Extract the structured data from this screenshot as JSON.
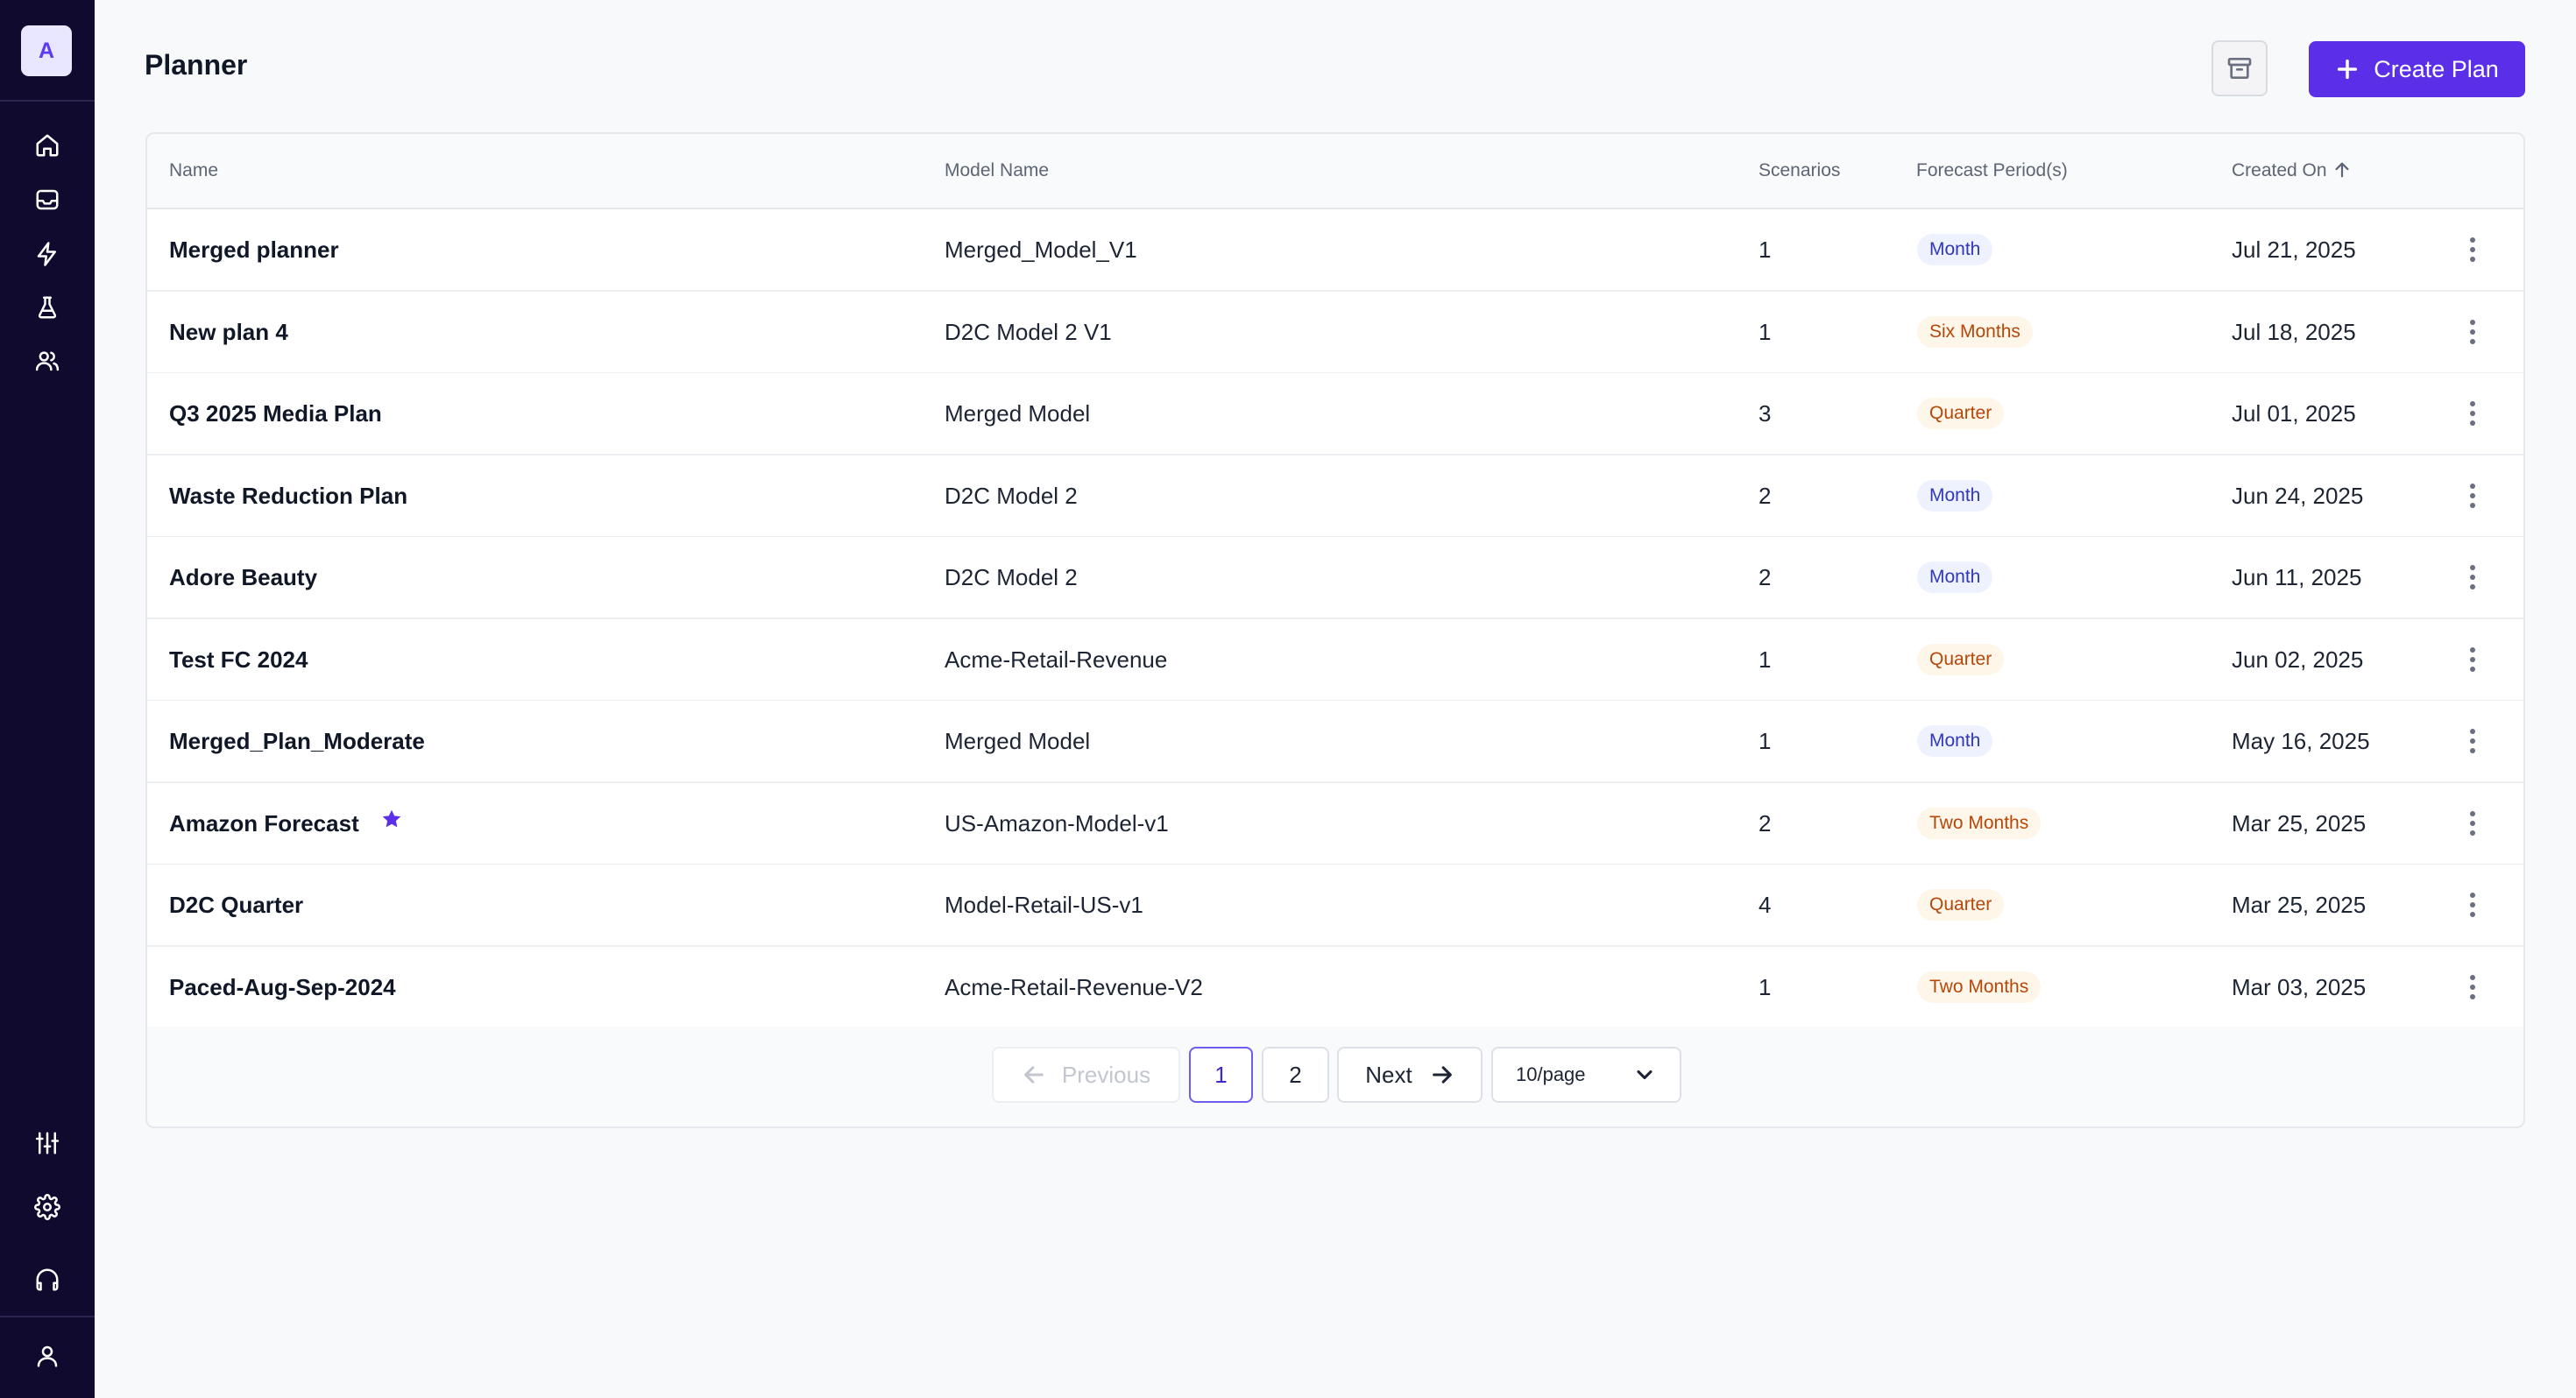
{
  "sidebar": {
    "workspace_initial": "A",
    "nav_icons": [
      "home-icon",
      "inbox-icon",
      "lightning-icon",
      "flask-icon",
      "users-icon"
    ],
    "bottom_icons": [
      "sliders-icon",
      "gear-icon",
      "headphones-icon",
      "user-icon"
    ]
  },
  "header": {
    "title": "Planner",
    "archive_icon": "archive-icon",
    "create_label": "Create Plan"
  },
  "table": {
    "columns": {
      "name": "Name",
      "model": "Model Name",
      "scenarios": "Scenarios",
      "forecast": "Forecast Period(s)",
      "created": "Created On"
    },
    "sort_indicator": "arrow-up-icon",
    "rows": [
      {
        "name": "Merged planner",
        "model": "Merged_Model_V1",
        "scenarios": "1",
        "period": "Month",
        "tone": "blue",
        "created": "Jul 21, 2025",
        "starred": false
      },
      {
        "name": "New plan 4",
        "model": "D2C Model 2 V1",
        "scenarios": "1",
        "period": "Six Months",
        "tone": "orange",
        "created": "Jul 18, 2025",
        "starred": false
      },
      {
        "name": "Q3 2025 Media Plan",
        "model": "Merged Model",
        "scenarios": "3",
        "period": "Quarter",
        "tone": "orange",
        "created": "Jul 01, 2025",
        "starred": false
      },
      {
        "name": "Waste Reduction Plan",
        "model": "D2C Model 2",
        "scenarios": "2",
        "period": "Month",
        "tone": "blue",
        "created": "Jun 24, 2025",
        "starred": false
      },
      {
        "name": "Adore Beauty",
        "model": "D2C Model 2",
        "scenarios": "2",
        "period": "Month",
        "tone": "blue",
        "created": "Jun 11, 2025",
        "starred": false
      },
      {
        "name": "Test FC 2024",
        "model": "Acme-Retail-Revenue",
        "scenarios": "1",
        "period": "Quarter",
        "tone": "orange",
        "created": "Jun 02, 2025",
        "starred": false
      },
      {
        "name": "Merged_Plan_Moderate",
        "model": "Merged Model",
        "scenarios": "1",
        "period": "Month",
        "tone": "blue",
        "created": "May 16, 2025",
        "starred": false
      },
      {
        "name": "Amazon Forecast",
        "model": "US-Amazon-Model-v1",
        "scenarios": "2",
        "period": "Two Months",
        "tone": "orange",
        "created": "Mar 25, 2025",
        "starred": true
      },
      {
        "name": "D2C Quarter",
        "model": "Model-Retail-US-v1",
        "scenarios": "4",
        "period": "Quarter",
        "tone": "orange",
        "created": "Mar 25, 2025",
        "starred": false
      },
      {
        "name": "Paced-Aug-Sep-2024",
        "model": "Acme-Retail-Revenue-V2",
        "scenarios": "1",
        "period": "Two Months",
        "tone": "orange",
        "created": "Mar 03, 2025",
        "starred": false
      }
    ]
  },
  "pagination": {
    "previous_label": "Previous",
    "pages": [
      "1",
      "2"
    ],
    "current_page": "1",
    "next_label": "Next",
    "page_size": "10/page"
  },
  "colors": {
    "accent": "#5b2ee8",
    "sidebar_bg": "#0f0a2e",
    "badge_blue_text": "#3138b8",
    "badge_orange_text": "#b54708"
  }
}
